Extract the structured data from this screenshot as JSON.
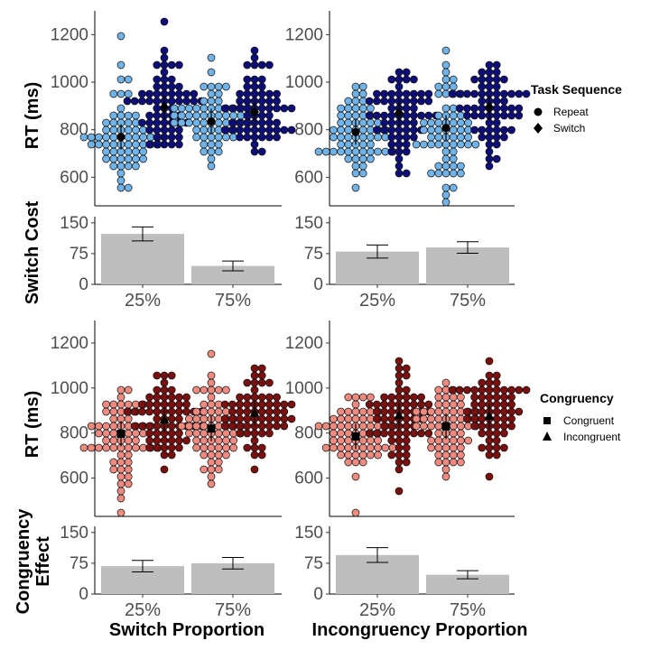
{
  "chart_data": [
    {
      "id": "rt_switch",
      "type": "scatter",
      "ylabel": "RT (ms)",
      "ylim": [
        480,
        1300
      ],
      "yticks": [
        600,
        800,
        1000,
        1200
      ],
      "categories": [
        "25%",
        "75%"
      ],
      "legend_group": "Task Sequence",
      "palette": "blue",
      "series": [
        {
          "name": "Repeat",
          "means": [
            770,
            835
          ]
        },
        {
          "name": "Switch",
          "means": [
            895,
            875
          ]
        }
      ]
    },
    {
      "id": "rt_incong",
      "type": "scatter",
      "ylabel": "",
      "ylim": [
        480,
        1300
      ],
      "yticks": [
        600,
        800,
        1000,
        1200
      ],
      "categories": [
        "25%",
        "75%"
      ],
      "legend_group": "Task Sequence",
      "palette": "blue",
      "series": [
        {
          "name": "Repeat",
          "means": [
            790,
            808
          ]
        },
        {
          "name": "Switch",
          "means": [
            870,
            895
          ]
        }
      ]
    },
    {
      "id": "cost_switch",
      "type": "bar",
      "ylabel": "Switch Cost",
      "ylim": [
        0,
        165
      ],
      "yticks": [
        0,
        75,
        150
      ],
      "categories": [
        "25%",
        "75%"
      ],
      "values": [
        123,
        45
      ],
      "errors": [
        17,
        12
      ]
    },
    {
      "id": "cost_incong",
      "type": "bar",
      "ylabel": "",
      "ylim": [
        0,
        165
      ],
      "yticks": [
        0,
        75,
        150
      ],
      "categories": [
        "25%",
        "75%"
      ],
      "values": [
        80,
        90
      ],
      "errors": [
        16,
        14
      ]
    },
    {
      "id": "rt_switch2",
      "type": "scatter",
      "ylabel": "RT (ms)",
      "ylim": [
        430,
        1300
      ],
      "yticks": [
        600,
        800,
        1000,
        1200
      ],
      "categories": [
        "25%",
        "75%"
      ],
      "legend_group": "Congruency",
      "palette": "red",
      "series": [
        {
          "name": "Congruent",
          "means": [
            797,
            820
          ]
        },
        {
          "name": "Incongruent",
          "means": [
            858,
            888
          ]
        }
      ]
    },
    {
      "id": "rt_incong2",
      "type": "scatter",
      "ylabel": "",
      "ylim": [
        430,
        1300
      ],
      "yticks": [
        600,
        800,
        1000,
        1200
      ],
      "categories": [
        "25%",
        "75%"
      ],
      "legend_group": "Congruency",
      "palette": "red",
      "series": [
        {
          "name": "Congruent",
          "means": [
            785,
            830
          ]
        },
        {
          "name": "Incongruent",
          "means": [
            878,
            875
          ]
        }
      ]
    },
    {
      "id": "eff_switch",
      "type": "bar",
      "ylabel": "Congruency Effect",
      "ylim": [
        0,
        165
      ],
      "yticks": [
        0,
        75,
        150
      ],
      "categories": [
        "25%",
        "75%"
      ],
      "values": [
        68,
        75
      ],
      "errors": [
        14,
        14
      ],
      "xlabel": "Switch Proportion"
    },
    {
      "id": "eff_incong",
      "type": "bar",
      "ylabel": "",
      "ylim": [
        0,
        165
      ],
      "yticks": [
        0,
        75,
        150
      ],
      "categories": [
        "25%",
        "75%"
      ],
      "values": [
        95,
        47
      ],
      "errors": [
        18,
        10
      ],
      "xlabel": "Incongruency Proportion"
    }
  ],
  "legends": [
    {
      "title": "Task Sequence",
      "items": [
        {
          "label": "Repeat",
          "shape": "circle"
        },
        {
          "label": "Switch",
          "shape": "diamond"
        }
      ]
    },
    {
      "title": "Congruency",
      "items": [
        {
          "label": "Congruent",
          "shape": "square"
        },
        {
          "label": "Incongruent",
          "shape": "triangle"
        }
      ]
    }
  ],
  "colors": {
    "light_blue": "#6fb3e8",
    "dark_blue": "#0d0d7a",
    "light_red": "#ee8a80",
    "dark_red": "#7a0f10",
    "bar": "#bebebe"
  }
}
